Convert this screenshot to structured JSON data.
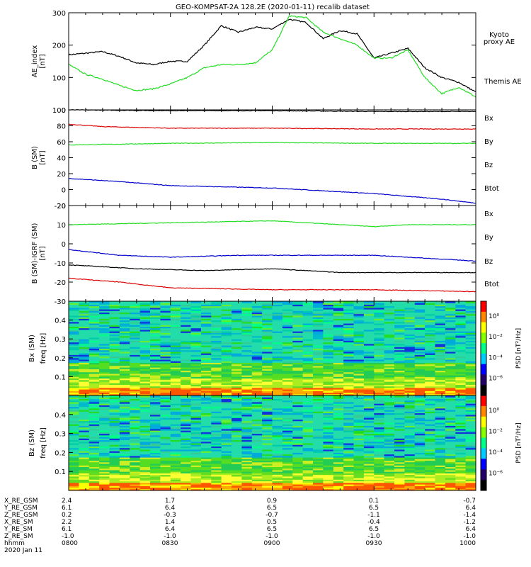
{
  "title": "GEO-KOMPSAT-2A 128.2E (2020-01-11) recalib dataset",
  "colors": {
    "black": "#000000",
    "red": "#dd0000",
    "green": "#22dd22",
    "blue": "#0000cc",
    "kyoto": "#22dd22"
  },
  "chart_data": [
    {
      "type": "line",
      "ylabel": "AE_index\n[nT]",
      "ylim": [
        0,
        300
      ],
      "yticks": [
        "0",
        "100",
        "200",
        "300"
      ],
      "x_range_hhmm": [
        "0800",
        "1000"
      ],
      "series": [
        {
          "name": "Themis AE",
          "color": "#000000",
          "x": [
            0,
            5,
            10,
            15,
            20,
            25,
            30,
            35,
            40,
            45,
            50,
            55,
            60,
            65,
            70,
            75,
            80,
            85,
            90,
            95,
            100,
            105,
            110,
            115,
            120
          ],
          "values": [
            170,
            175,
            180,
            165,
            145,
            140,
            150,
            150,
            200,
            260,
            240,
            255,
            250,
            280,
            270,
            220,
            245,
            235,
            160,
            175,
            190,
            130,
            100,
            85,
            55
          ]
        },
        {
          "name": "Kyoto proxy AE",
          "color": "#22dd22",
          "x": [
            0,
            5,
            10,
            15,
            20,
            25,
            30,
            35,
            40,
            45,
            50,
            55,
            60,
            65,
            70,
            75,
            80,
            85,
            90,
            95,
            100,
            105,
            110,
            115,
            120
          ],
          "values": [
            140,
            110,
            95,
            75,
            60,
            65,
            80,
            100,
            130,
            140,
            140,
            145,
            185,
            290,
            285,
            240,
            220,
            200,
            160,
            160,
            185,
            100,
            50,
            70,
            40
          ]
        }
      ],
      "legend": [
        "Kyoto\nproxy AE",
        "Themis AE"
      ]
    },
    {
      "type": "line",
      "ylabel": "B (SM)\n[nT]",
      "ylim": [
        -20,
        100
      ],
      "yticks": [
        "-20",
        "0",
        "20",
        "40",
        "60",
        "80",
        "100"
      ],
      "series": [
        {
          "name": "Btot",
          "color": "#000000",
          "x": [
            0,
            30,
            60,
            90,
            120
          ],
          "values": [
            100,
            99,
            99,
            98,
            98
          ]
        },
        {
          "name": "Bz",
          "color": "#dd0000",
          "x": [
            0,
            10,
            30,
            60,
            90,
            120
          ],
          "values": [
            82,
            79,
            77,
            77,
            76,
            76
          ]
        },
        {
          "name": "By",
          "color": "#22dd22",
          "x": [
            0,
            30,
            60,
            90,
            120
          ],
          "values": [
            56,
            58,
            59,
            58,
            58
          ]
        },
        {
          "name": "Bx",
          "color": "#0000cc",
          "x": [
            0,
            15,
            30,
            60,
            90,
            110,
            120
          ],
          "values": [
            14,
            10,
            5,
            2,
            -5,
            -12,
            -17
          ]
        }
      ],
      "legend": [
        "Bx",
        "By",
        "Bz",
        "Btot"
      ]
    },
    {
      "type": "line",
      "ylabel": "B (SM)-IGRF (SM)\n[nT]",
      "ylim": [
        -30,
        20
      ],
      "yticks": [
        "-30",
        "-20",
        "-10",
        "0",
        "10",
        "20"
      ],
      "series": [
        {
          "name": "By",
          "color": "#22dd22",
          "x": [
            0,
            30,
            60,
            80,
            90,
            100,
            120
          ],
          "values": [
            10,
            11,
            12,
            10,
            9,
            10,
            10
          ]
        },
        {
          "name": "Bx",
          "color": "#0000cc",
          "x": [
            0,
            15,
            30,
            50,
            70,
            90,
            110,
            120
          ],
          "values": [
            -3,
            -6,
            -7,
            -6,
            -6,
            -6,
            -8,
            -9
          ]
        },
        {
          "name": "Btot",
          "color": "#000000",
          "x": [
            0,
            20,
            40,
            60,
            80,
            100,
            120
          ],
          "values": [
            -11,
            -13,
            -14,
            -13,
            -15,
            -15,
            -15
          ]
        },
        {
          "name": "Bz",
          "color": "#dd0000",
          "x": [
            0,
            15,
            30,
            60,
            90,
            120
          ],
          "values": [
            -18,
            -20,
            -23,
            -24,
            -24,
            -25
          ]
        }
      ],
      "legend": [
        "Bx",
        "By",
        "Bz",
        "Btot"
      ]
    },
    {
      "type": "heatmap",
      "ylabel": "Bx (SM)\nfreq [Hz]",
      "yticks": [
        "0.1",
        "0.2",
        "0.3",
        "0.4"
      ],
      "colorbar_label": "PSD [nT²/Hz]",
      "colorbar_ticks": [
        "10⁰",
        "10⁻²",
        "10⁻⁴",
        "10⁻⁶"
      ]
    },
    {
      "type": "heatmap",
      "ylabel": "Bz (SM)\nfreq [Hz]",
      "yticks": [
        "0.1",
        "0.2",
        "0.3",
        "0.4"
      ],
      "colorbar_label": "PSD [nT²/Hz]",
      "colorbar_ticks": [
        "10⁰",
        "10⁻²",
        "10⁻⁴",
        "10⁻⁶"
      ]
    }
  ],
  "ephemeris": {
    "labels": [
      "X_RE_GSM",
      "Y_RE_GSM",
      "Z_RE_GSM",
      "X_RE_SM",
      "Y_RE_SM",
      "Z_RE_SM",
      "hhmm",
      "2020 Jan 11"
    ],
    "columns": [
      [
        "2.4",
        "6.1",
        "0.2",
        "2.2",
        "6.1",
        "-1.0",
        "0800"
      ],
      [
        "1.7",
        "6.4",
        "-0.3",
        "1.4",
        "6.4",
        "-1.0",
        "0830"
      ],
      [
        "0.9",
        "6.5",
        "-0.7",
        "0.5",
        "6.5",
        "-1.0",
        "0900"
      ],
      [
        "0.1",
        "6.5",
        "-1.1",
        "-0.4",
        "6.5",
        "-1.0",
        "0930"
      ],
      [
        "-0.7",
        "6.4",
        "-1.4",
        "-1.2",
        "6.4",
        "-1.0",
        "1000"
      ]
    ]
  }
}
